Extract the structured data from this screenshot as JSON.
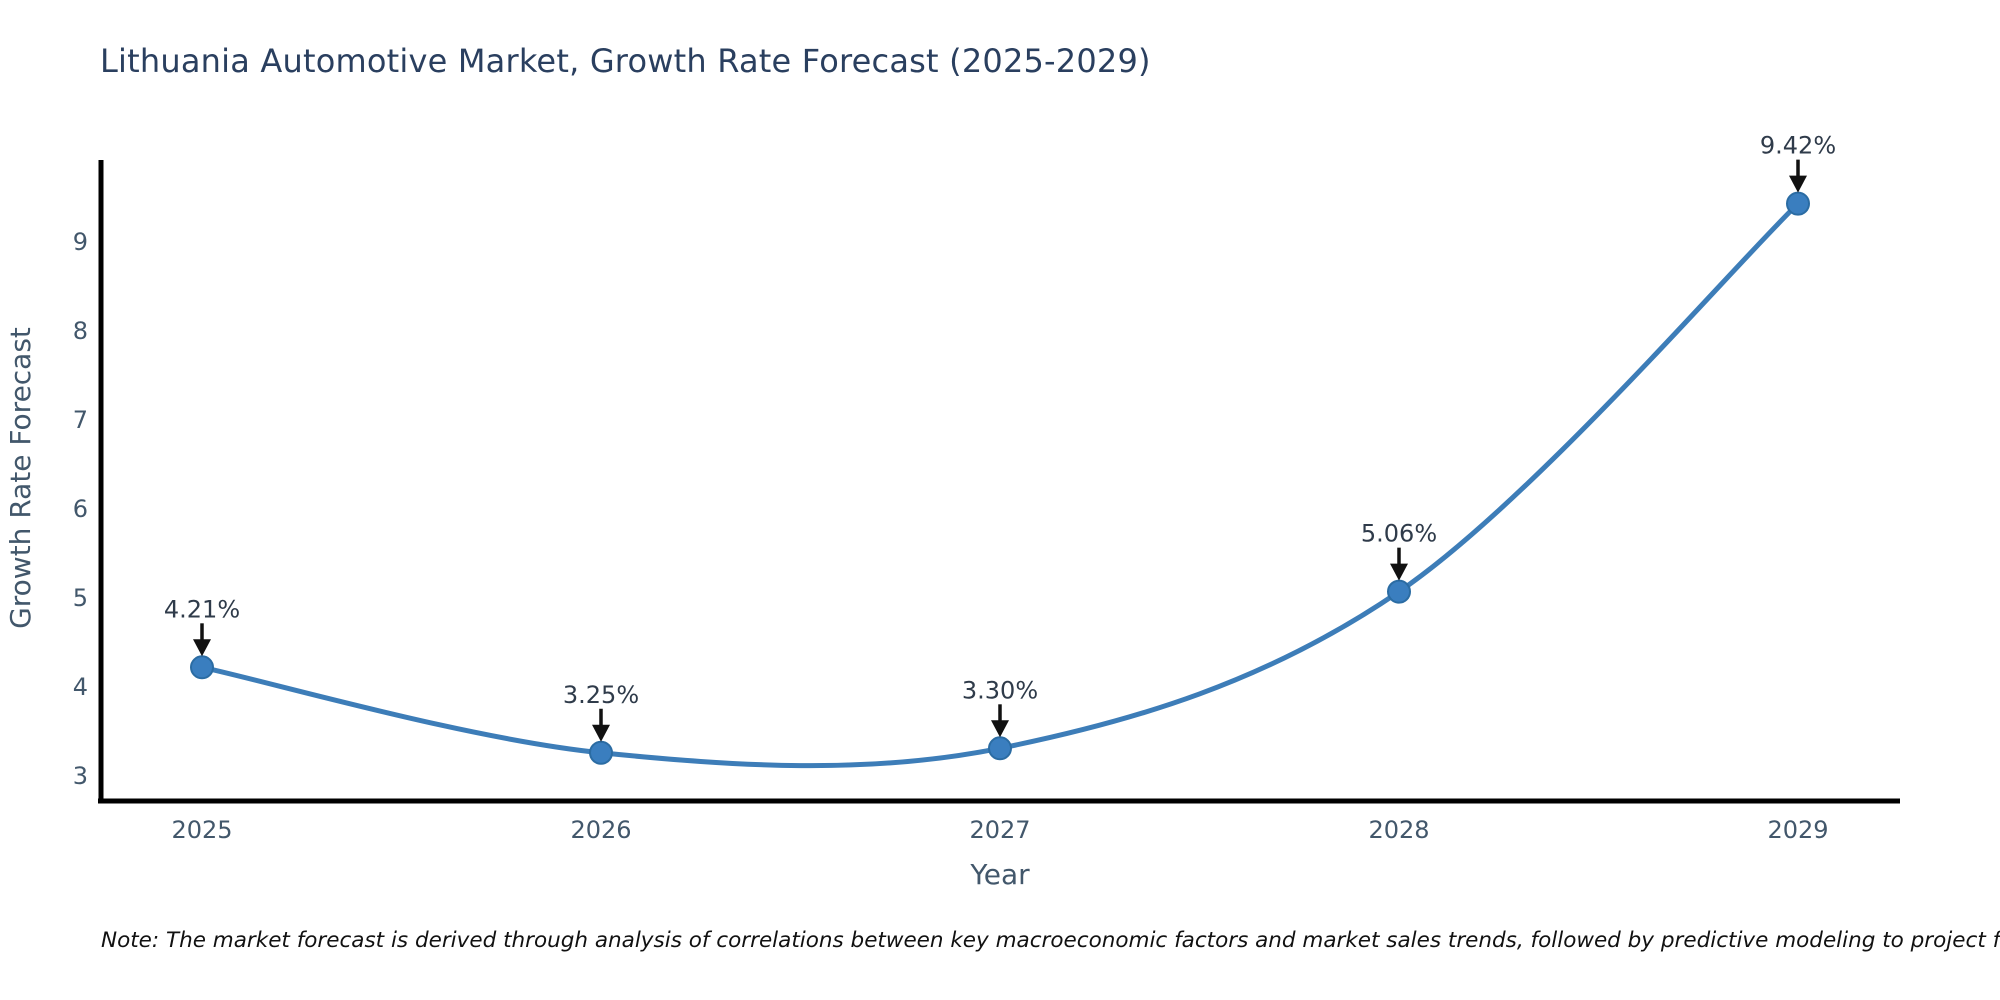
{
  "header": {
    "title": "Lithuania Automotive Market, Growth Rate Forecast (2025-2029)"
  },
  "footer": {
    "note": "Note: The market forecast is derived through analysis of correlations between key macroeconomic factors and market sales trends, followed by predictive modeling to project future sales."
  },
  "chart_data": {
    "type": "line",
    "title": "Lithuania Automotive Market, Growth Rate Forecast (2025-2029)",
    "xlabel": "Year",
    "ylabel": "Growth Rate Forecast",
    "categories": [
      "2025",
      "2026",
      "2027",
      "2028",
      "2029"
    ],
    "series": [
      {
        "name": "Growth Rate Forecast",
        "values": [
          4.21,
          3.25,
          3.3,
          5.06,
          9.42
        ],
        "point_labels": [
          "4.21%",
          "3.25%",
          "3.30%",
          "5.06%",
          "9.42%"
        ]
      }
    ],
    "yticks": [
      3,
      4,
      5,
      6,
      7,
      8,
      9
    ],
    "ylim": [
      2.72,
      9.9
    ],
    "grid": false,
    "legend": "none",
    "line_shape": "spline",
    "marker": "circle",
    "annotations": "value labels with black down arrows above each point",
    "colors": {
      "line": "#3d7db8",
      "marker_fill": "#3a7ebf",
      "marker_edge": "#2b6ca3",
      "arrow": "#111111",
      "title_text": "#2a3f5f",
      "tick_text": "#42576b",
      "axis_title_text": "#42576b",
      "annotation_text": "#2f3b4a",
      "axis_line": "#000000",
      "background": "#ffffff"
    }
  }
}
